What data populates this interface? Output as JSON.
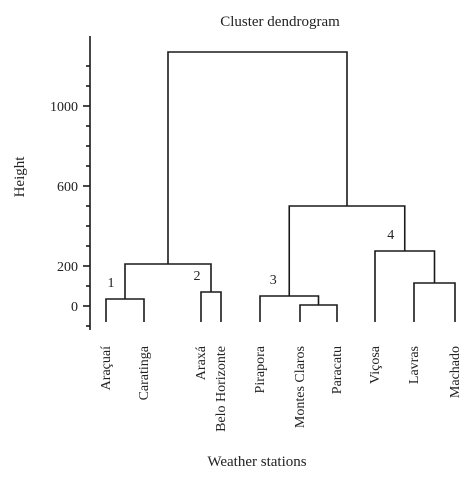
{
  "chart_data": {
    "type": "dendrogram",
    "title": "Cluster dendrogram",
    "xlabel": "Weather stations",
    "ylabel": "Height",
    "ylim": [
      -120,
      1300
    ],
    "yticks": [
      0,
      200,
      600,
      1000
    ],
    "leaves": [
      "Araçuaí",
      "Caratinga",
      "Araxá",
      "Belo Horizonte",
      "Pirapora",
      "Montes Claros",
      "Paracatu",
      "Viçosa",
      "Lavras",
      "Machado"
    ],
    "leaf_bottom": -80,
    "merges": [
      {
        "id": "m1",
        "left": "leaf:0",
        "right": "leaf:1",
        "height": 35
      },
      {
        "id": "m2",
        "left": "leaf:2",
        "right": "leaf:3",
        "height": 70
      },
      {
        "id": "m3",
        "left": "m1",
        "right": "m2",
        "height": 210
      },
      {
        "id": "m4",
        "left": "leaf:5",
        "right": "leaf:6",
        "height": 5
      },
      {
        "id": "m5",
        "left": "leaf:4",
        "right": "m4",
        "height": 50
      },
      {
        "id": "m6",
        "left": "leaf:8",
        "right": "leaf:9",
        "height": 115
      },
      {
        "id": "m7",
        "left": "leaf:7",
        "right": "m6",
        "height": 275
      },
      {
        "id": "m8",
        "left": "m5",
        "right": "m7",
        "height": 500
      },
      {
        "id": "m9",
        "left": "m3",
        "right": "m8",
        "height": 1270
      }
    ],
    "cluster_labels": [
      {
        "text": "1",
        "merge": "m1"
      },
      {
        "text": "2",
        "merge": "m2"
      },
      {
        "text": "3",
        "merge": "m5"
      },
      {
        "text": "4",
        "merge": "m7"
      }
    ]
  }
}
